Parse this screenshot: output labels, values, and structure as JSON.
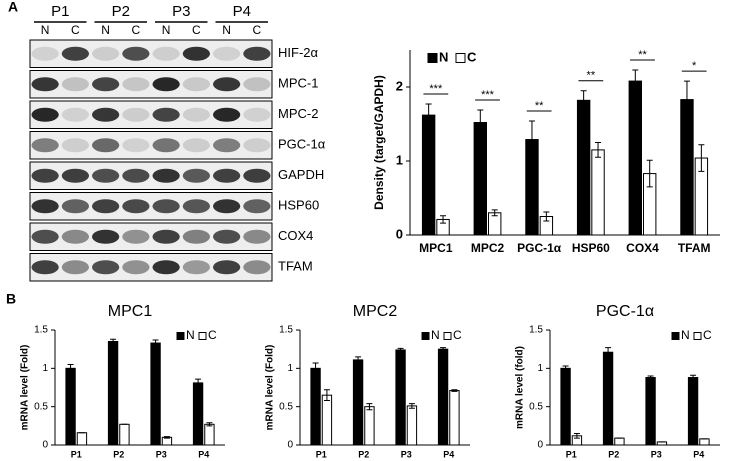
{
  "panel_labels": [
    "A",
    "B"
  ],
  "blot": {
    "lanes": [
      "P1",
      "P2",
      "P3",
      "P4"
    ],
    "lane_labels": [
      "N",
      "C"
    ],
    "proteins": [
      "HIF-2α",
      "MPC-1",
      "MPC-2",
      "PGC-1α",
      "GAPDH",
      "HSP60",
      "COX4",
      "TFAM"
    ]
  },
  "chart_data": [
    {
      "type": "bar",
      "y_label": "Density (target/GAPDH)",
      "categories": [
        "MPC1",
        "MPC2",
        "PGC-1α",
        "HSP60",
        "COX4",
        "TFAM"
      ],
      "series": [
        {
          "name": "N",
          "color": "#000000",
          "values": [
            1.62,
            1.52,
            1.29,
            1.82,
            2.08,
            1.83
          ],
          "errors": [
            0.15,
            0.17,
            0.25,
            0.13,
            0.15,
            0.25
          ]
        },
        {
          "name": "C",
          "color": "#ffffff",
          "values": [
            0.21,
            0.3,
            0.25,
            1.15,
            0.83,
            1.04
          ],
          "errors": [
            0.05,
            0.04,
            0.06,
            0.1,
            0.18,
            0.18
          ]
        }
      ],
      "annotations": [
        "***",
        "***",
        "**",
        "**",
        "**",
        "*"
      ],
      "ylim": [
        0,
        2.5
      ],
      "yticks": [
        0,
        1,
        2
      ]
    },
    {
      "type": "bar",
      "title": "MPC1",
      "y_label": "mRNA level (Fold)",
      "categories": [
        "P1",
        "P2",
        "P3",
        "P4"
      ],
      "series": [
        {
          "name": "N",
          "color": "#000000",
          "values": [
            1.0,
            1.35,
            1.33,
            0.81
          ],
          "errors": [
            0.05,
            0.03,
            0.04,
            0.05
          ]
        },
        {
          "name": "C",
          "color": "#ffffff",
          "values": [
            0.16,
            0.27,
            0.1,
            0.27
          ],
          "errors": [
            0,
            0,
            0.01,
            0.02
          ]
        }
      ],
      "ylim": [
        0,
        1.5
      ],
      "yticks": [
        0,
        0.5,
        1,
        1.5
      ]
    },
    {
      "type": "bar",
      "title": "MPC2",
      "y_label": "mRNA level (Fold)",
      "categories": [
        "P1",
        "P2",
        "P3",
        "P4"
      ],
      "series": [
        {
          "name": "N",
          "color": "#000000",
          "values": [
            1.0,
            1.11,
            1.24,
            1.25
          ],
          "errors": [
            0.07,
            0.04,
            0.02,
            0.02
          ]
        },
        {
          "name": "C",
          "color": "#ffffff",
          "values": [
            0.65,
            0.5,
            0.51,
            0.71
          ],
          "errors": [
            0.07,
            0.04,
            0.03,
            0.01
          ]
        }
      ],
      "ylim": [
        0,
        1.5
      ],
      "yticks": [
        0,
        0.5,
        1,
        1.5
      ]
    },
    {
      "type": "bar",
      "title": "PGC-1α",
      "y_label": "mRNA level (fold)",
      "categories": [
        "P1",
        "P2",
        "P3",
        "P4"
      ],
      "series": [
        {
          "name": "N",
          "color": "#000000",
          "values": [
            1.0,
            1.21,
            0.88,
            0.88
          ],
          "errors": [
            0.03,
            0.06,
            0.02,
            0.03
          ]
        },
        {
          "name": "C",
          "color": "#ffffff",
          "values": [
            0.12,
            0.09,
            0.04,
            0.08
          ],
          "errors": [
            0.03,
            0,
            0,
            0
          ]
        }
      ],
      "ylim": [
        0,
        1.5
      ],
      "yticks": [
        0,
        0.5,
        1,
        1.5
      ]
    }
  ]
}
